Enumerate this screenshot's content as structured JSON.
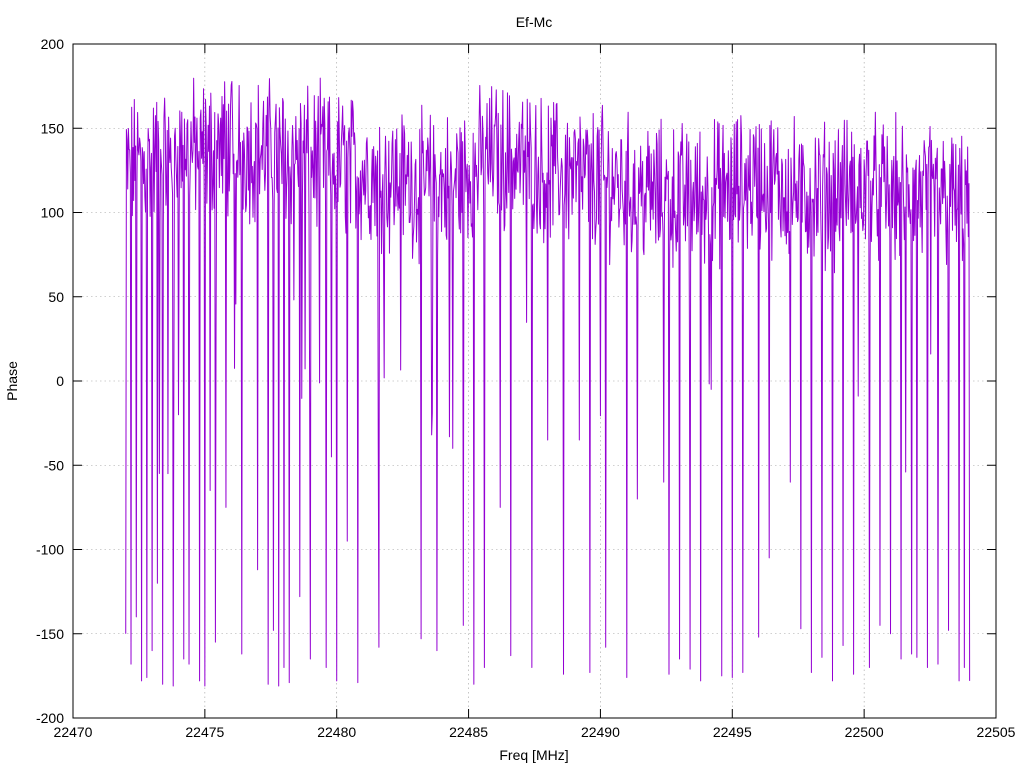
{
  "chart_data": {
    "type": "line",
    "title": "Ef-Mc",
    "xlabel": "Freq [MHz]",
    "ylabel": "Phase",
    "xlim": [
      22470,
      22505
    ],
    "ylim": [
      -200,
      200
    ],
    "xticks": [
      22470,
      22475,
      22480,
      22485,
      22490,
      22495,
      22500,
      22505
    ],
    "yticks": [
      -200,
      -150,
      -100,
      -50,
      0,
      50,
      100,
      150,
      200
    ],
    "grid": true,
    "legend": "none",
    "series_color": "#9400d3",
    "data_x_range": [
      22472,
      22504
    ],
    "points_per_mhz": 40,
    "series": [
      {
        "baseline": [
          [
            22472,
            125
          ],
          [
            22474,
            135
          ],
          [
            22476,
            140
          ],
          [
            22478,
            135
          ],
          [
            22480,
            130
          ],
          [
            22482,
            120
          ],
          [
            22484,
            115
          ],
          [
            22486,
            135
          ],
          [
            22488,
            125
          ],
          [
            22490,
            120
          ],
          [
            22492,
            110
          ],
          [
            22494,
            110
          ],
          [
            22496,
            120
          ],
          [
            22498,
            110
          ],
          [
            22500,
            115
          ],
          [
            22502,
            110
          ],
          [
            22504,
            105
          ]
        ],
        "phase_wraps": [
          [
            22472.0,
            -150
          ],
          [
            22472.2,
            -168
          ],
          [
            22472.4,
            -140
          ],
          [
            22472.6,
            -178
          ],
          [
            22472.8,
            -176
          ],
          [
            22473.0,
            -160
          ],
          [
            22473.2,
            -120
          ],
          [
            22473.4,
            -180
          ],
          [
            22473.6,
            -55
          ],
          [
            22473.8,
            -181
          ],
          [
            22474.0,
            -20
          ],
          [
            22474.2,
            -165
          ],
          [
            22474.4,
            -168
          ],
          [
            22474.8,
            -178
          ],
          [
            22475.0,
            -181
          ],
          [
            22475.2,
            -65
          ],
          [
            22475.4,
            -155
          ],
          [
            22475.8,
            -75
          ],
          [
            22476.4,
            -162
          ],
          [
            22477.0,
            -112
          ],
          [
            22477.4,
            -180
          ],
          [
            22477.6,
            -148
          ],
          [
            22477.8,
            -181
          ],
          [
            22478.0,
            -170
          ],
          [
            22478.2,
            -179
          ],
          [
            22478.6,
            -128
          ],
          [
            22479.0,
            -165
          ],
          [
            22479.6,
            -170
          ],
          [
            22479.8,
            -45
          ],
          [
            22480.0,
            -178
          ],
          [
            22480.4,
            -95
          ],
          [
            22480.8,
            -179
          ],
          [
            22481.6,
            -158
          ],
          [
            22483.2,
            -153
          ],
          [
            22483.6,
            -32
          ],
          [
            22483.8,
            -160
          ],
          [
            22484.4,
            -40
          ],
          [
            22484.8,
            -145
          ],
          [
            22485.2,
            -180
          ],
          [
            22485.6,
            -170
          ],
          [
            22486.2,
            -75
          ],
          [
            22486.6,
            -163
          ],
          [
            22487.4,
            -170
          ],
          [
            22488.0,
            -35
          ],
          [
            22488.6,
            -174
          ],
          [
            22489.2,
            -35
          ],
          [
            22489.6,
            -173
          ],
          [
            22490.2,
            -158
          ],
          [
            22491.0,
            -176
          ],
          [
            22491.4,
            -70
          ],
          [
            22492.4,
            -60
          ],
          [
            22492.6,
            -174
          ],
          [
            22493.0,
            -165
          ],
          [
            22493.4,
            -171
          ],
          [
            22493.8,
            -178
          ],
          [
            22494.2,
            -5
          ],
          [
            22494.6,
            -175
          ],
          [
            22495.0,
            -176
          ],
          [
            22495.4,
            -173
          ],
          [
            22496.0,
            -152
          ],
          [
            22496.4,
            -105
          ],
          [
            22497.2,
            -60
          ],
          [
            22497.6,
            -147
          ],
          [
            22498.0,
            -173
          ],
          [
            22498.4,
            -164
          ],
          [
            22498.8,
            -178
          ],
          [
            22499.2,
            -157
          ],
          [
            22499.6,
            -174
          ],
          [
            22500.2,
            -170
          ],
          [
            22500.6,
            -145
          ],
          [
            22501.0,
            -150
          ],
          [
            22501.4,
            -165
          ],
          [
            22501.8,
            -162
          ],
          [
            22502.0,
            -164
          ],
          [
            22502.4,
            -170
          ],
          [
            22502.8,
            -168
          ],
          [
            22503.2,
            -148
          ],
          [
            22503.6,
            -178
          ],
          [
            22503.8,
            -170
          ],
          [
            22504.0,
            -178
          ]
        ]
      }
    ]
  }
}
